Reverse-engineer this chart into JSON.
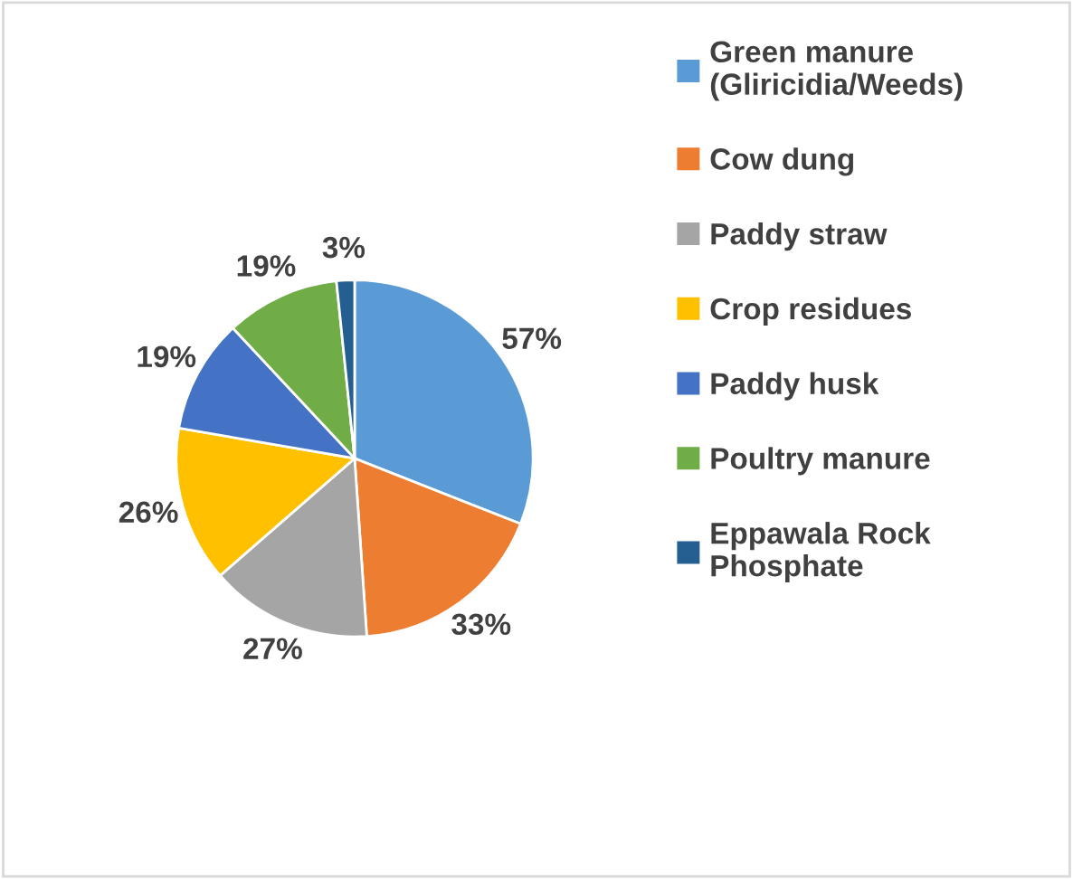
{
  "chart_data": {
    "type": "pie",
    "categories": [
      "Green manure\n(Gliricidia/Weeds)",
      "Cow dung",
      "Paddy straw",
      "Crop residues",
      "Paddy husk",
      "Poultry manure",
      "Eppawala Rock\nPhosphate"
    ],
    "values": [
      57,
      33,
      27,
      26,
      19,
      19,
      3
    ],
    "value_labels": [
      "57%",
      "33%",
      "27%",
      "26%",
      "19%",
      "19%",
      "3%"
    ],
    "colors": [
      "#5b9bd5",
      "#ed7d31",
      "#a5a5a5",
      "#ffc000",
      "#4472c4",
      "#70ad47",
      "#255e91"
    ],
    "legend": "right"
  }
}
